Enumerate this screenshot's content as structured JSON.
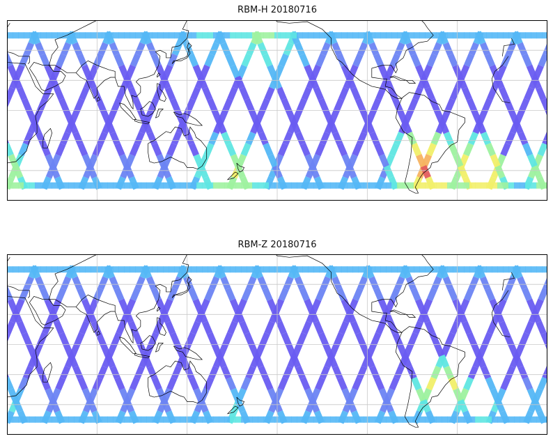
{
  "panels": [
    {
      "title": "RBM-H 20180716",
      "palette": [
        "#6a5cf2",
        "#6c84f4",
        "#55b8f6",
        "#5fe6e2",
        "#9ef2a0",
        "#f2f06a",
        "#f7b461",
        "#e35d5d"
      ],
      "hotspots": [
        {
          "lon": -60,
          "lat": -38,
          "r": 28,
          "level": 7
        },
        {
          "lon": -25,
          "lat": -40,
          "r": 22,
          "level": 7
        },
        {
          "lon": 170,
          "lat": -42,
          "r": 30,
          "level": 5
        },
        {
          "lon": 20,
          "lat": -42,
          "r": 22,
          "level": 5
        },
        {
          "lon": -170,
          "lat": 52,
          "r": 35,
          "level": 4
        },
        {
          "lon": 150,
          "lat": 52,
          "r": 25,
          "level": 3
        }
      ]
    },
    {
      "title": "RBM-Z 20180716",
      "palette": [
        "#6a5cf2",
        "#6c84f4",
        "#55b8f6",
        "#5fe6e2",
        "#9ef2a0",
        "#f2f06a",
        "#f7b461",
        "#e35d5d"
      ],
      "hotspots": [
        {
          "lon": -50,
          "lat": -28,
          "r": 22,
          "level": 6
        },
        {
          "lon": -25,
          "lat": -40,
          "r": 18,
          "level": 4
        },
        {
          "lon": 20,
          "lat": -42,
          "r": 22,
          "level": 3
        },
        {
          "lon": 170,
          "lat": -45,
          "r": 22,
          "level": 3
        }
      ]
    }
  ],
  "map": {
    "lon_range": [
      20,
      380
    ],
    "lat_range": [
      -60,
      60
    ],
    "data_lat_range": [
      -52,
      52
    ],
    "gridlines_lon": [
      80,
      140,
      200,
      260,
      320
    ],
    "gridlines_lat": [
      -40,
      -20,
      0,
      20,
      40
    ],
    "coastline_color": "#000000",
    "grid_color": "#c8c8c8"
  }
}
